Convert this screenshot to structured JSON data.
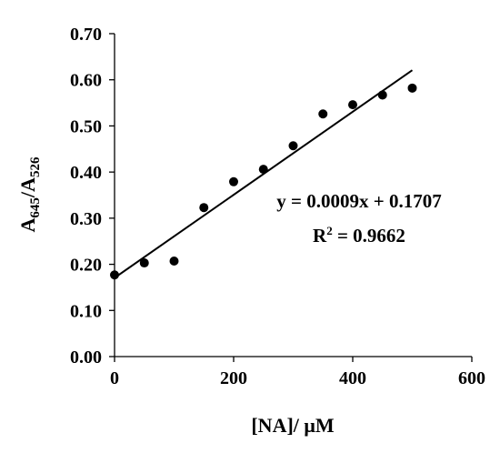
{
  "chart_data": {
    "type": "scatter",
    "xlabel": "[NA]/ μM",
    "ylabel": {
      "base1": "A",
      "sub1": "645",
      "slash": "/",
      "base2": "A",
      "sub2": "526"
    },
    "xlim": [
      0,
      600
    ],
    "ylim": [
      0,
      0.7
    ],
    "xticks": [
      "0",
      "200",
      "400",
      "600"
    ],
    "yticks": [
      "0.00",
      "0.10",
      "0.20",
      "0.30",
      "0.40",
      "0.50",
      "0.60",
      "0.70"
    ],
    "grid": false,
    "legend": "none",
    "point_color": "#000000",
    "series": [
      {
        "x": [
          0,
          50,
          100,
          150,
          200,
          250,
          300,
          350,
          400,
          450,
          500
        ],
        "y": [
          0.177,
          0.203,
          0.207,
          0.323,
          0.379,
          0.406,
          0.457,
          0.526,
          0.546,
          0.567,
          0.582
        ]
      }
    ],
    "trendline": {
      "slope": 0.0009,
      "intercept": 0.1707,
      "x_range": [
        0,
        500
      ]
    },
    "annotations": {
      "equation": "y = 0.0009x + 0.1707",
      "r2_label": "R",
      "r2_sup": "2",
      "r2_value": " = 0.9662"
    }
  }
}
